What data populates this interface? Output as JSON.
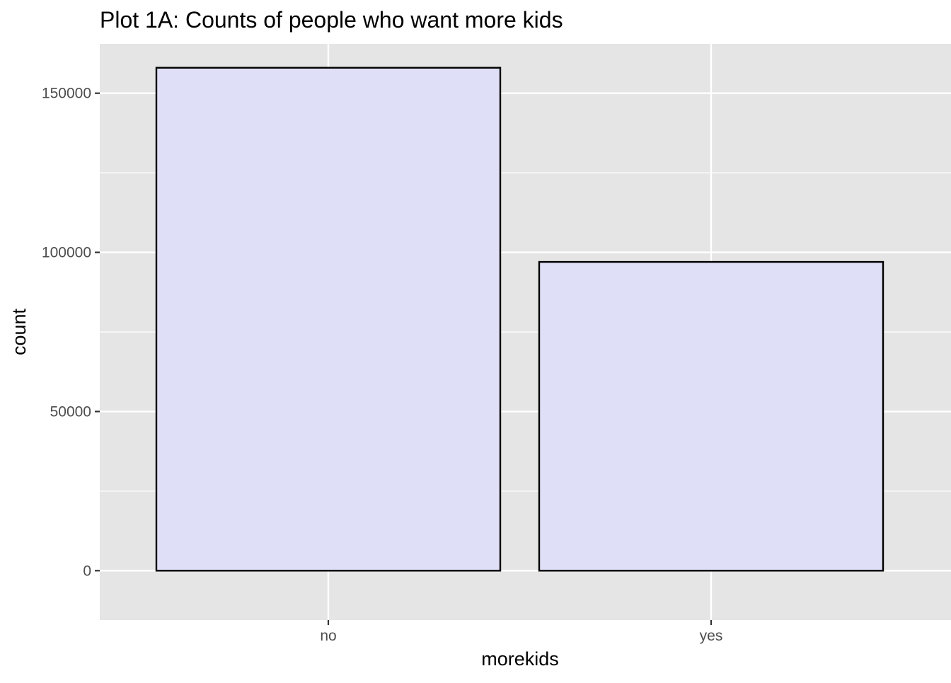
{
  "chart_data": {
    "type": "bar",
    "title": "Plot 1A: Counts of people who want more kids",
    "xlabel": "morekids",
    "ylabel": "count",
    "categories": [
      "no",
      "yes"
    ],
    "values": [
      158000,
      97000
    ],
    "ylim": [
      -15500,
      165500
    ],
    "yticks": [
      0,
      50000,
      100000,
      150000
    ],
    "ytick_labels": [
      "0",
      "50000",
      "100000",
      "150000"
    ],
    "grid": true,
    "legend": "none",
    "colors": {
      "panel_background": "#e5e5e5",
      "grid_line": "#ffffff",
      "bar_fill": "#dfdff8",
      "bar_outline": "#000000",
      "tick_mark": "#333333",
      "tick_label": "#4d4d4d",
      "text": "#000000"
    }
  }
}
